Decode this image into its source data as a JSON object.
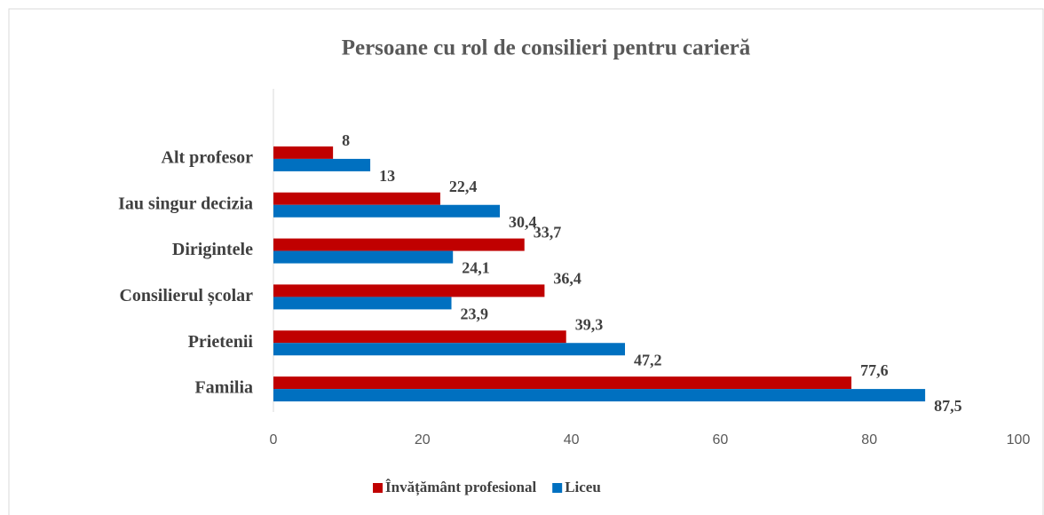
{
  "chart_data": {
    "type": "bar",
    "orientation": "horizontal",
    "title": "Persoane cu rol de consilieri pentru carieră",
    "categories": [
      "Alt profesor",
      "Iau singur decizia",
      "Dirigintele",
      "Consilierul școlar",
      "Prietenii",
      "Familia"
    ],
    "series": [
      {
        "name": "Învățământ profesional",
        "color": "#c00000",
        "values": [
          8,
          22.4,
          33.7,
          36.4,
          39.3,
          77.6
        ],
        "value_labels": [
          "8",
          "22,4",
          "33,7",
          "36,4",
          "39,3",
          "77,6"
        ]
      },
      {
        "name": "Liceu",
        "color": "#0070c0",
        "values": [
          13,
          30.4,
          24.1,
          23.9,
          47.2,
          87.5
        ],
        "value_labels": [
          "13",
          "30,4",
          "24,1",
          "23,9",
          "47,2",
          "87,5"
        ]
      }
    ],
    "xlim": [
      0,
      100
    ],
    "xticks": [
      0,
      20,
      40,
      60,
      80,
      100
    ],
    "legend": "bottom"
  }
}
